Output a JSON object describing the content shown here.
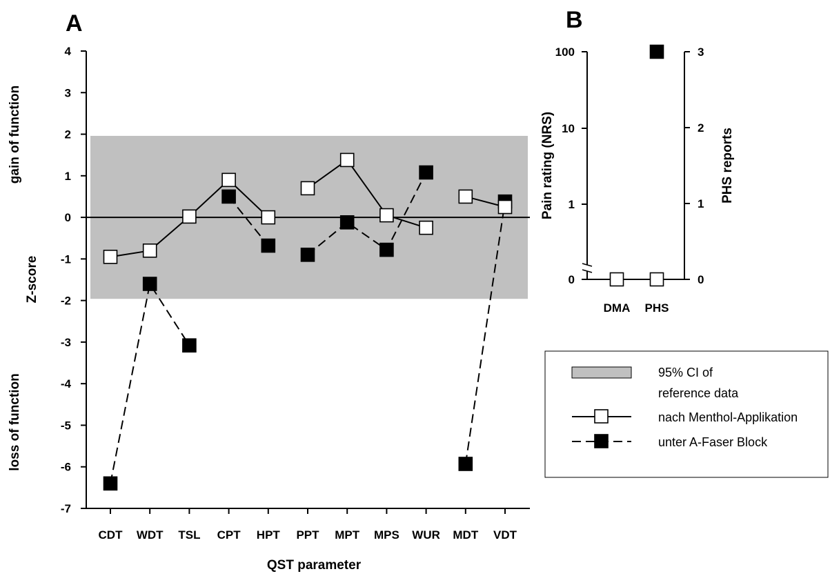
{
  "chart_data": [
    {
      "panel": "A",
      "type": "line",
      "xlabel": "QST parameter",
      "ylabel": "Z-score",
      "ylabel_upper": "gain of function",
      "ylabel_lower": "loss of function",
      "ylim": [
        -7,
        4
      ],
      "yticks": [
        "-7",
        "-6",
        "-5",
        "-4",
        "-3",
        "-2",
        "-1",
        "0",
        "1",
        "2",
        "3",
        "4"
      ],
      "categories": [
        "CDT",
        "WDT",
        "TSL",
        "CPT",
        "HPT",
        "PPT",
        "MPT",
        "MPS",
        "WUR",
        "MDT",
        "VDT"
      ],
      "ci_band": [
        -1.96,
        1.96
      ],
      "zero_line": true,
      "series": [
        {
          "name": "nach Menthol-Applikation",
          "marker": "open-square",
          "line": "solid",
          "values": [
            -0.95,
            -0.8,
            0.02,
            0.9,
            0.0,
            0.7,
            1.38,
            0.05,
            -0.25,
            0.5,
            0.25
          ],
          "segments": [
            [
              0,
              4
            ],
            [
              5,
              8
            ],
            [
              9,
              10
            ]
          ]
        },
        {
          "name": "unter A-Faser Block",
          "marker": "filled-square",
          "line": "dashed",
          "values": [
            -6.4,
            -1.6,
            -3.08,
            0.5,
            -0.68,
            -0.9,
            -0.12,
            -0.78,
            1.08,
            -5.93,
            0.38
          ],
          "segments": [
            [
              0,
              2
            ],
            [
              3,
              4
            ],
            [
              5,
              8
            ],
            [
              9,
              10
            ]
          ]
        }
      ]
    },
    {
      "panel": "B",
      "type": "scatter",
      "categories": [
        "DMA",
        "PHS"
      ],
      "ylabel_left": "Pain rating (NRS)",
      "ylabel_right": "PHS reports",
      "yticks_left": [
        "0",
        "1",
        "10",
        "100"
      ],
      "yticks_right": [
        "0",
        "1",
        "2",
        "3"
      ],
      "y_left_scale": "log with axis break above 0",
      "y_right_range": [
        0,
        3
      ],
      "series": [
        {
          "name": "nach Menthol-Applikation",
          "marker": "open-square",
          "line": "solid",
          "values_left": [
            0,
            0
          ]
        },
        {
          "name": "unter A-Faser Block",
          "marker": "filled-square",
          "values_right": [
            null,
            3
          ]
        }
      ]
    }
  ],
  "panel_letters": [
    "A",
    "B"
  ],
  "legend": {
    "ci_label_line1": "95% CI of",
    "ci_label_line2": "reference data",
    "series1_label": "nach Menthol-Applikation",
    "series2_label": "unter A-Faser Block"
  },
  "colors": {
    "ci_band": "#c0c0c0",
    "axis": "#000000",
    "open_marker_fill": "#ffffff",
    "filled_marker": "#000000"
  }
}
